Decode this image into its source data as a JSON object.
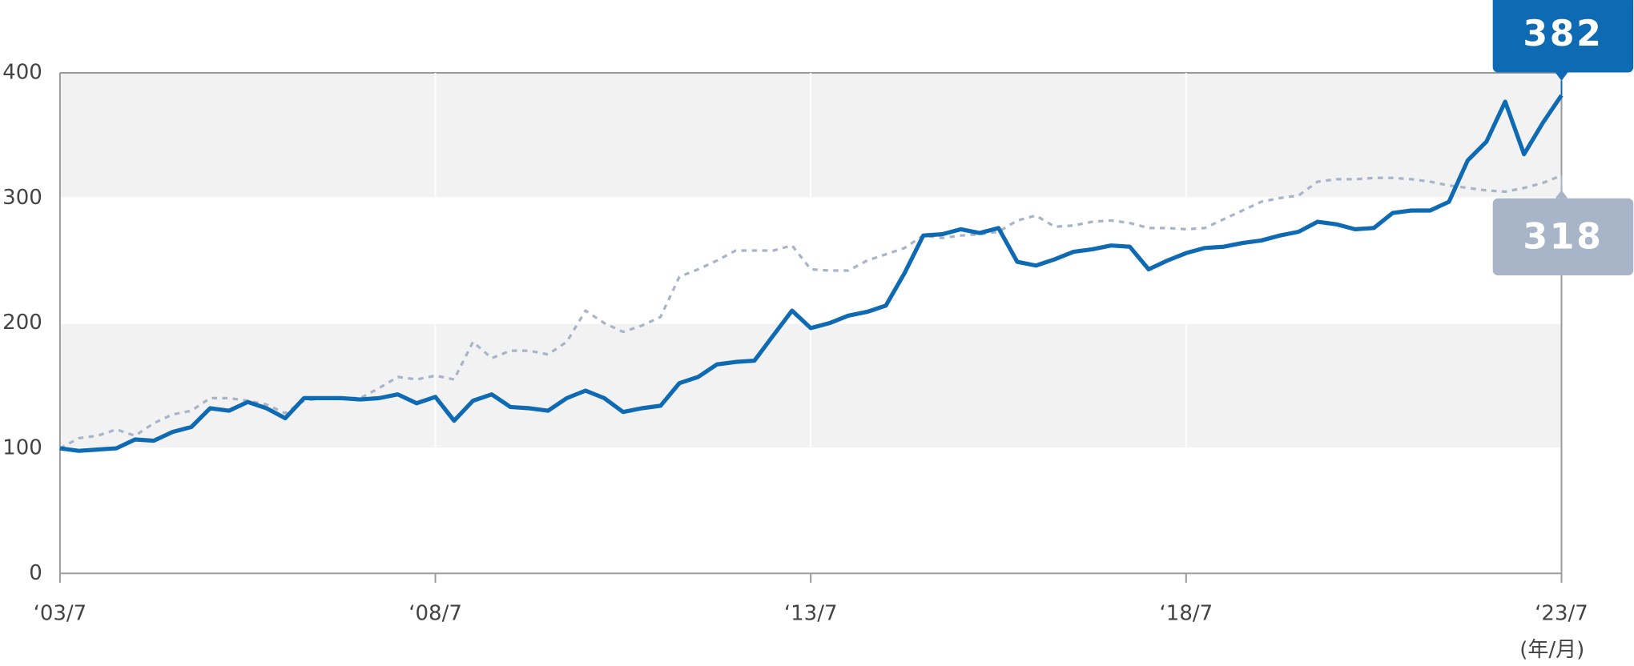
{
  "chart_data": {
    "type": "line",
    "x": [
      2003.5,
      2003.75,
      2004,
      2004.25,
      2004.5,
      2004.75,
      2005,
      2005.25,
      2005.5,
      2005.75,
      2006,
      2006.25,
      2006.5,
      2006.75,
      2007,
      2007.25,
      2007.5,
      2007.75,
      2008,
      2008.25,
      2008.5,
      2008.75,
      2009,
      2009.25,
      2009.5,
      2009.75,
      2010,
      2010.25,
      2010.5,
      2010.75,
      2011,
      2011.25,
      2011.5,
      2011.75,
      2012,
      2012.25,
      2012.5,
      2012.75,
      2013,
      2013.25,
      2013.5,
      2013.75,
      2014,
      2014.25,
      2014.5,
      2014.75,
      2015,
      2015.25,
      2015.5,
      2015.75,
      2016,
      2016.25,
      2016.5,
      2016.75,
      2017,
      2017.25,
      2017.5,
      2017.75,
      2018,
      2018.25,
      2018.5,
      2018.75,
      2019,
      2019.25,
      2019.5,
      2019.75,
      2020,
      2020.25,
      2020.5,
      2020.75,
      2021,
      2021.25,
      2021.5,
      2021.75,
      2022,
      2022.25,
      2022.5,
      2022.75,
      2023,
      2023.25,
      2023.5
    ],
    "series": [
      {
        "color": "#0f6ab4",
        "dashed": false,
        "values": [
          100,
          98,
          99,
          100,
          107,
          106,
          113,
          117,
          132,
          130,
          137,
          132,
          124,
          140,
          140,
          140,
          139,
          140,
          143,
          136,
          141,
          122,
          138,
          143,
          133,
          132,
          130,
          140,
          146,
          140,
          129,
          132,
          134,
          152,
          157,
          167,
          169,
          170,
          190,
          210,
          196,
          200,
          206,
          209,
          214,
          240,
          270,
          271,
          275,
          272,
          276,
          249,
          246,
          251,
          257,
          259,
          262,
          261,
          243,
          250,
          256,
          260,
          261,
          264,
          266,
          270,
          273,
          281,
          279,
          275,
          276,
          288,
          290,
          290,
          297,
          330,
          345,
          377,
          335,
          360,
          382
        ]
      },
      {
        "color": "#a8b4c8",
        "dashed": true,
        "values": [
          100,
          108,
          110,
          115,
          110,
          120,
          127,
          130,
          140,
          140,
          138,
          135,
          128,
          138,
          140,
          140,
          140,
          148,
          157,
          155,
          158,
          155,
          185,
          172,
          178,
          178,
          175,
          185,
          210,
          200,
          193,
          198,
          205,
          237,
          243,
          250,
          258,
          258,
          258,
          262,
          243,
          242,
          242,
          250,
          255,
          260,
          270,
          268,
          270,
          271,
          273,
          282,
          286,
          277,
          278,
          281,
          282,
          280,
          276,
          276,
          275,
          276,
          283,
          290,
          297,
          300,
          302,
          313,
          315,
          315,
          316,
          316,
          315,
          313,
          310,
          308,
          306,
          305,
          308,
          312,
          318
        ]
      }
    ],
    "xlim": [
      2003.5,
      2023.5
    ],
    "xticks": [
      {
        "value": 2003.5,
        "label": "‘03/7"
      },
      {
        "value": 2008.5,
        "label": "‘08/7"
      },
      {
        "value": 2013.5,
        "label": "‘13/7"
      },
      {
        "value": 2018.5,
        "label": "‘18/7"
      },
      {
        "value": 2023.5,
        "label": "‘23/7"
      }
    ],
    "x_unit": "(年/月)",
    "ylim": [
      0,
      400
    ],
    "yticks": [
      0,
      100,
      200,
      300,
      400
    ],
    "grid": true,
    "band_color": "#f2f2f2"
  }
}
